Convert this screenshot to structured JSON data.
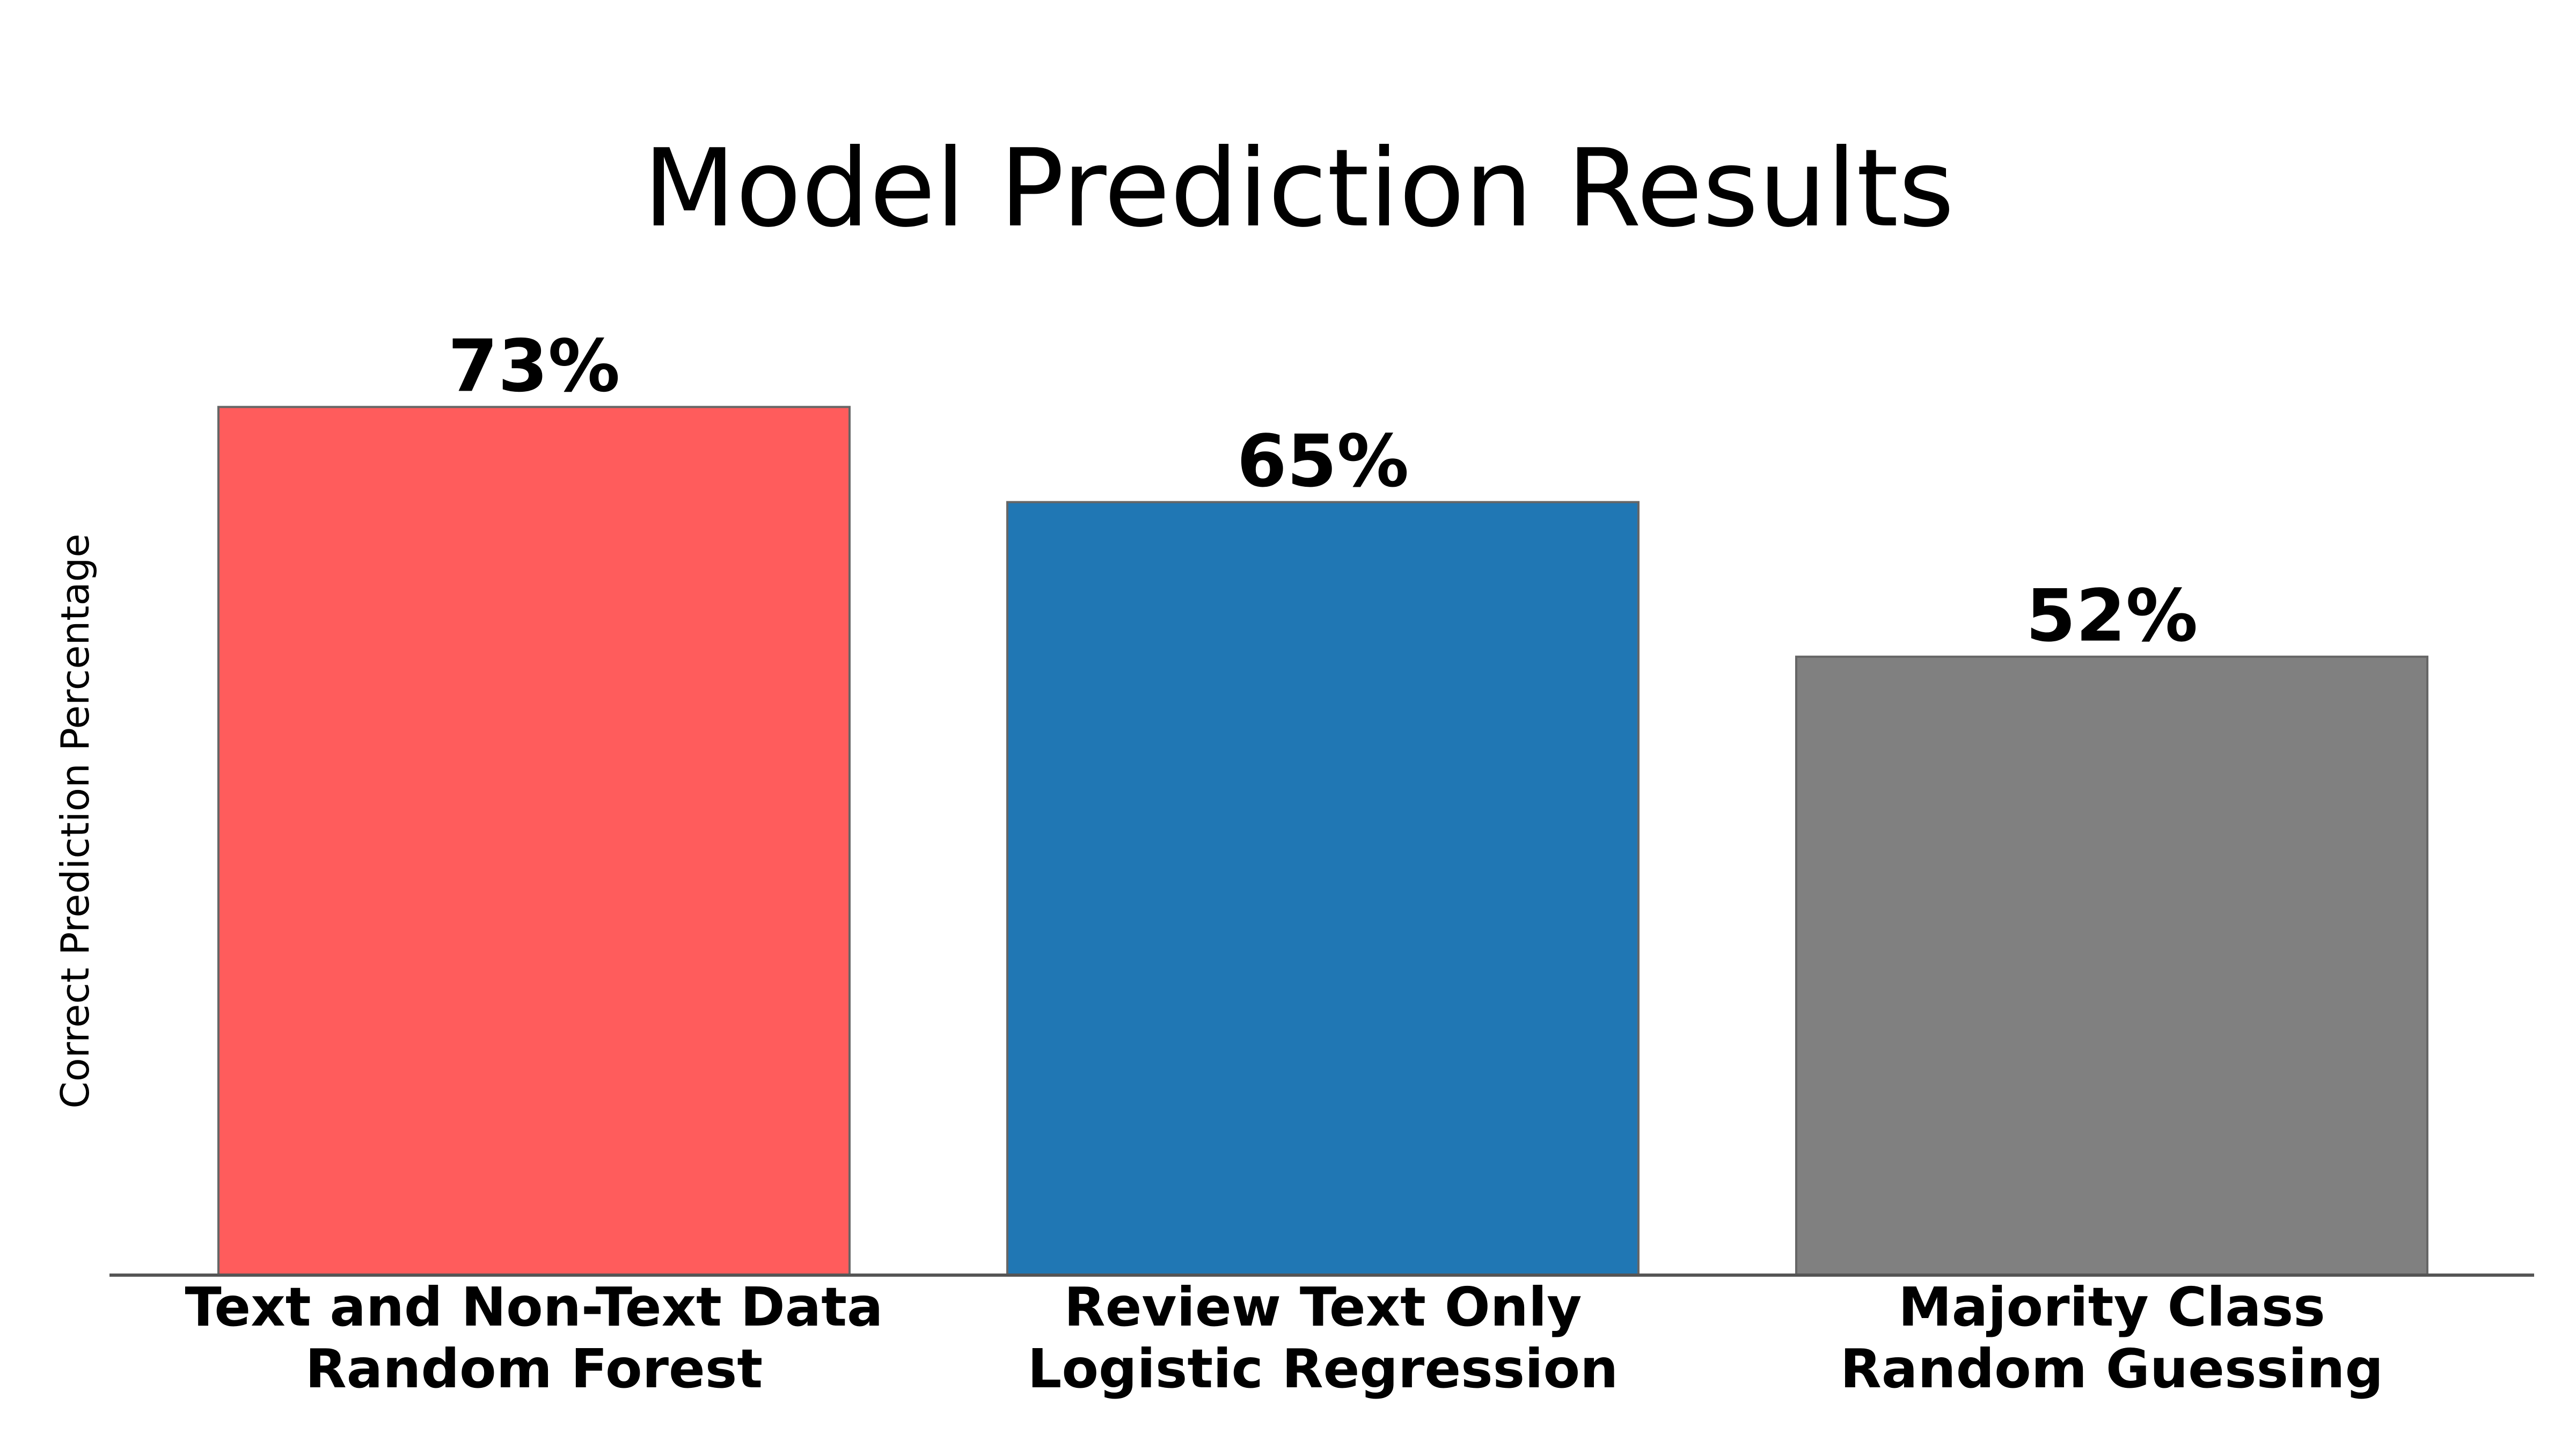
{
  "chart_data": {
    "type": "bar",
    "title": "Model Prediction Results",
    "xlabel": "",
    "ylabel": "Correct Prediction Percentage",
    "categories": [
      [
        "Text and Non-Text Data",
        "Random Forest"
      ],
      [
        "Review Text Only",
        "Logistic Regression"
      ],
      [
        "Majority Class",
        "Random Guessing"
      ]
    ],
    "values": [
      73,
      65,
      52
    ],
    "data_labels": [
      "73%",
      "65%",
      "52%"
    ],
    "bar_colors": [
      "#ff5c5c",
      "#2077b4",
      "#808080"
    ],
    "bar_edge_color": "#666666",
    "ylim": [
      0,
      100
    ],
    "y_ticks_visible": false,
    "grid": false,
    "legend": "none"
  }
}
